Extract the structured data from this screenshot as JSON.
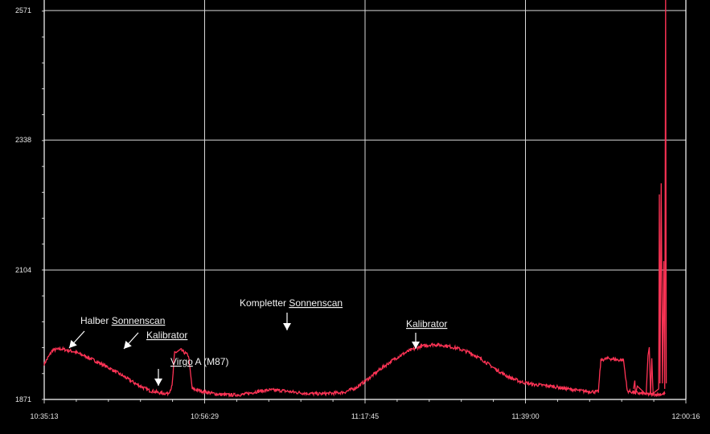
{
  "chart_data": {
    "type": "line",
    "title": "",
    "xlabel": "",
    "ylabel": "",
    "x_ticks": [
      "10:35:13",
      "10:56:29",
      "11:17:45",
      "11:39:00",
      "12:00:16"
    ],
    "y_ticks": [
      1871,
      2104,
      2338,
      2571
    ],
    "xlim_seconds": [
      38113,
      43216
    ],
    "ylim": [
      1871,
      2590
    ],
    "grid": true,
    "series": [
      {
        "color": "#ff3355",
        "points": [
          [
            38113,
            1935
          ],
          [
            38180,
            1960
          ],
          [
            38250,
            1962
          ],
          [
            38350,
            1957
          ],
          [
            38450,
            1948
          ],
          [
            38550,
            1937
          ],
          [
            38650,
            1925
          ],
          [
            38750,
            1912
          ],
          [
            38850,
            1898
          ],
          [
            38950,
            1887
          ],
          [
            39050,
            1882
          ],
          [
            39100,
            1882
          ],
          [
            39130,
            1895
          ],
          [
            39150,
            1955
          ],
          [
            39200,
            1960
          ],
          [
            39260,
            1950
          ],
          [
            39290,
            1890
          ],
          [
            39330,
            1888
          ],
          [
            39400,
            1884
          ],
          [
            39500,
            1880
          ],
          [
            39600,
            1879
          ],
          [
            39700,
            1880
          ],
          [
            39800,
            1885
          ],
          [
            39900,
            1888
          ],
          [
            40000,
            1887
          ],
          [
            40100,
            1884
          ],
          [
            40200,
            1882
          ],
          [
            40300,
            1881
          ],
          [
            40400,
            1882
          ],
          [
            40500,
            1884
          ],
          [
            40600,
            1893
          ],
          [
            40700,
            1910
          ],
          [
            40800,
            1928
          ],
          [
            40900,
            1944
          ],
          [
            41000,
            1957
          ],
          [
            41100,
            1966
          ],
          [
            41200,
            1970
          ],
          [
            41300,
            1968
          ],
          [
            41400,
            1963
          ],
          [
            41500,
            1955
          ],
          [
            41600,
            1942
          ],
          [
            41700,
            1926
          ],
          [
            41800,
            1912
          ],
          [
            41900,
            1903
          ],
          [
            42000,
            1898
          ],
          [
            42100,
            1896
          ],
          [
            42200,
            1893
          ],
          [
            42300,
            1889
          ],
          [
            42400,
            1886
          ],
          [
            42480,
            1885
          ],
          [
            42520,
            1885
          ],
          [
            42540,
            1942
          ],
          [
            42600,
            1945
          ],
          [
            42680,
            1942
          ],
          [
            42720,
            1942
          ],
          [
            42750,
            1886
          ],
          [
            42850,
            1882
          ],
          [
            42950,
            1880
          ],
          [
            43000,
            1880
          ],
          [
            43050,
            1881
          ]
        ]
      }
    ],
    "annotations": [
      {
        "text_plain": "Halber ",
        "text_underlined": "Sonnenscan"
      },
      {
        "text_plain": "",
        "text_underlined": "Kalibrator"
      },
      {
        "text_plain": "",
        "text_underlined": "Virgo",
        "text_suffix": " A (M87)"
      },
      {
        "text_plain": "Kompletter ",
        "text_underlined": "Sonnenscan"
      },
      {
        "text_plain": "",
        "text_underlined": "Kalibrator"
      }
    ],
    "colors": {
      "background": "#000000",
      "grid": "#d8d8d8",
      "line": "#ff3355",
      "text": "#f2f2f2"
    }
  }
}
